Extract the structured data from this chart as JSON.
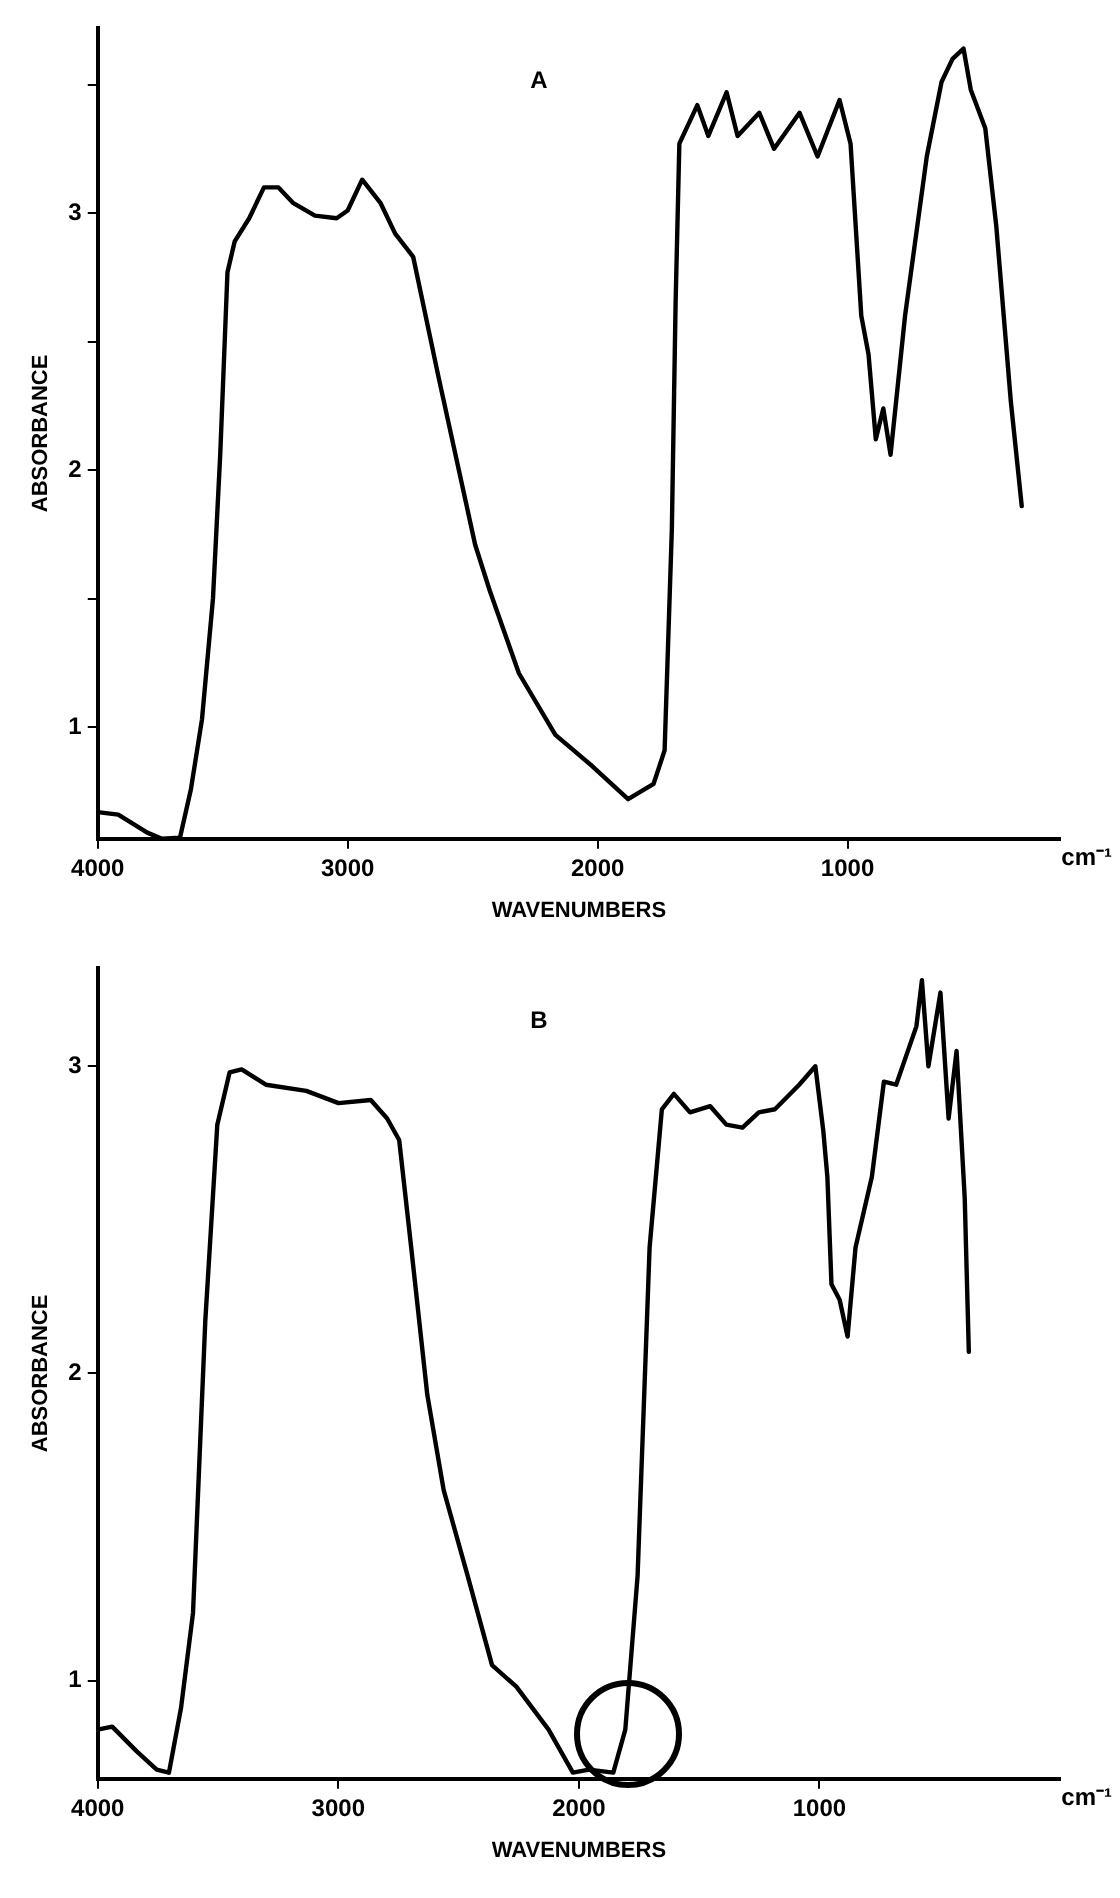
{
  "chart_data": [
    {
      "type": "line",
      "title": "A",
      "xlabel": "WAVENUMBERS",
      "ylabel": "ABSORBANCE",
      "annotations": [
        "cm⁻¹"
      ],
      "grid": false,
      "marker": "none",
      "line_style": "solid",
      "xlim": [
        4000,
        150
      ],
      "ylim": [
        0.566,
        3.72
      ],
      "xticks": [
        4000,
        3000,
        2000,
        1000
      ],
      "yticks": [
        1,
        {
          "value": 1.5,
          "label": null
        },
        2,
        {
          "value": 2.5,
          "label": null
        },
        3,
        {
          "value": 3.5,
          "label": null
        }
      ],
      "x": [
        4000,
        3918,
        3802,
        3743,
        3671,
        3627,
        3583,
        3539,
        3510,
        3481,
        3452,
        3394,
        3335,
        3277,
        3219,
        3131,
        3044,
        3000,
        2942,
        2869,
        2810,
        2738,
        2636,
        2490,
        2431,
        2315,
        2169,
        2023,
        1878,
        1776,
        1732,
        1703,
        1688,
        1673,
        1601,
        1557,
        1484,
        1440,
        1353,
        1294,
        1192,
        1120,
        1032,
        988,
        945,
        916,
        887,
        857,
        828,
        770,
        683,
        624,
        580,
        536,
        507,
        449,
        405,
        347,
        303
      ],
      "series": [
        {
          "color": "#000000",
          "values": [
            0.67,
            0.66,
            0.59,
            0.566,
            0.57,
            0.76,
            1.03,
            1.5,
            2.06,
            2.77,
            2.89,
            2.98,
            3.1,
            3.1,
            3.04,
            2.99,
            2.98,
            3.01,
            3.13,
            3.04,
            2.92,
            2.83,
            2.36,
            1.71,
            1.53,
            1.21,
            0.97,
            0.85,
            0.72,
            0.78,
            0.91,
            1.77,
            2.65,
            3.27,
            3.42,
            3.3,
            3.47,
            3.3,
            3.39,
            3.25,
            3.39,
            3.22,
            3.44,
            3.27,
            2.6,
            2.45,
            2.12,
            2.24,
            2.06,
            2.6,
            3.22,
            3.51,
            3.6,
            3.64,
            3.48,
            3.33,
            2.95,
            2.27,
            1.86
          ]
        }
      ]
    },
    {
      "type": "line",
      "title": "B",
      "xlabel": "WAVENUMBERS",
      "ylabel": "ABSORBANCE",
      "annotations": [
        "cm⁻¹"
      ],
      "grid": false,
      "marker": "none",
      "line_style": "solid",
      "xlim": [
        4000,
        0
      ],
      "ylim": [
        0.68,
        3.32
      ],
      "xticks": [
        4000,
        3000,
        2000,
        1000
      ],
      "yticks": [
        1,
        2,
        3
      ],
      "x": [
        4000,
        3940,
        3839,
        3755,
        3704,
        3654,
        3604,
        3553,
        3503,
        3452,
        3402,
        3301,
        3133,
        2999,
        2865,
        2797,
        2747,
        2697,
        2630,
        2562,
        2462,
        2361,
        2260,
        2126,
        2025,
        1958,
        1857,
        1807,
        1756,
        1706,
        1655,
        1605,
        1538,
        1454,
        1387,
        1320,
        1252,
        1185,
        1084,
        1017,
        984,
        967,
        950,
        916,
        883,
        850,
        782,
        732,
        681,
        597,
        574,
        547,
        497,
        463,
        430,
        396,
        379
      ],
      "series": [
        {
          "color": "#000000",
          "values": [
            0.84,
            0.85,
            0.77,
            0.71,
            0.7,
            0.91,
            1.22,
            2.17,
            2.81,
            2.98,
            2.99,
            2.94,
            2.92,
            2.88,
            2.89,
            2.83,
            2.76,
            2.41,
            1.93,
            1.62,
            1.34,
            1.05,
            0.98,
            0.84,
            0.7,
            0.71,
            0.7,
            0.84,
            1.34,
            2.41,
            2.86,
            2.91,
            2.85,
            2.87,
            2.81,
            2.8,
            2.85,
            2.86,
            2.94,
            3.0,
            2.79,
            2.64,
            2.29,
            2.24,
            2.12,
            2.41,
            2.64,
            2.95,
            2.94,
            3.13,
            3.28,
            3.0,
            3.24,
            2.83,
            3.05,
            2.57,
            2.07
          ]
        }
      ]
    }
  ]
}
